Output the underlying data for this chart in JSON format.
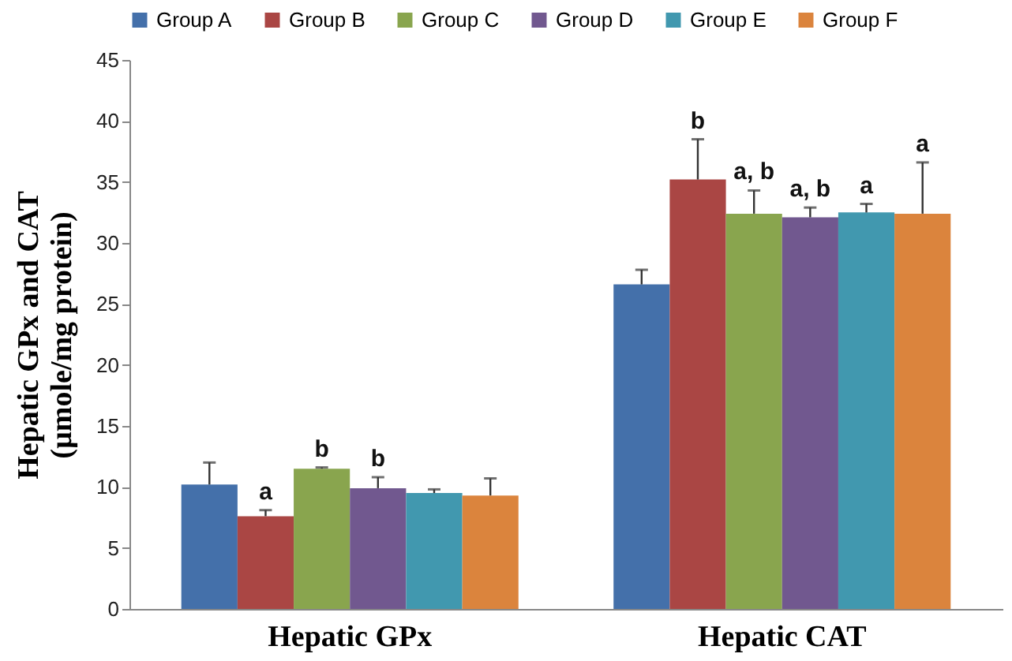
{
  "chart_data": {
    "type": "bar",
    "ylabel": "Hepatic GPx and CAT\n(µmole/mg protein)",
    "categories": [
      "Hepatic GPx",
      "Hepatic CAT"
    ],
    "ylim": [
      0,
      45
    ],
    "yticks": [
      0,
      5,
      10,
      15,
      20,
      25,
      30,
      35,
      40,
      45
    ],
    "grid": false,
    "legend": "top",
    "series": [
      {
        "name": "Group A",
        "color": "#4470aa",
        "values": [
          10.2,
          26.6
        ],
        "errors": [
          1.8,
          1.2
        ],
        "value_labels": [
          null,
          null
        ]
      },
      {
        "name": "Group B",
        "color": "#aa4644",
        "values": [
          7.6,
          35.2
        ],
        "errors": [
          0.5,
          3.3
        ],
        "value_labels": [
          "a",
          "b"
        ]
      },
      {
        "name": "Group C",
        "color": "#89a54e",
        "values": [
          11.5,
          32.4
        ],
        "errors": [
          0.1,
          1.9
        ],
        "value_labels": [
          "b",
          "a, b"
        ]
      },
      {
        "name": "Group D",
        "color": "#71588f",
        "values": [
          9.9,
          32.1
        ],
        "errors": [
          0.9,
          0.8
        ],
        "value_labels": [
          "b",
          "a, b"
        ]
      },
      {
        "name": "Group E",
        "color": "#4198af",
        "values": [
          9.5,
          32.5
        ],
        "errors": [
          0.3,
          0.7
        ],
        "value_labels": [
          null,
          "a"
        ]
      },
      {
        "name": "Group F",
        "color": "#db843d",
        "values": [
          9.3,
          32.4
        ],
        "errors": [
          1.4,
          4.2
        ],
        "value_labels": [
          null,
          "a"
        ]
      }
    ]
  }
}
